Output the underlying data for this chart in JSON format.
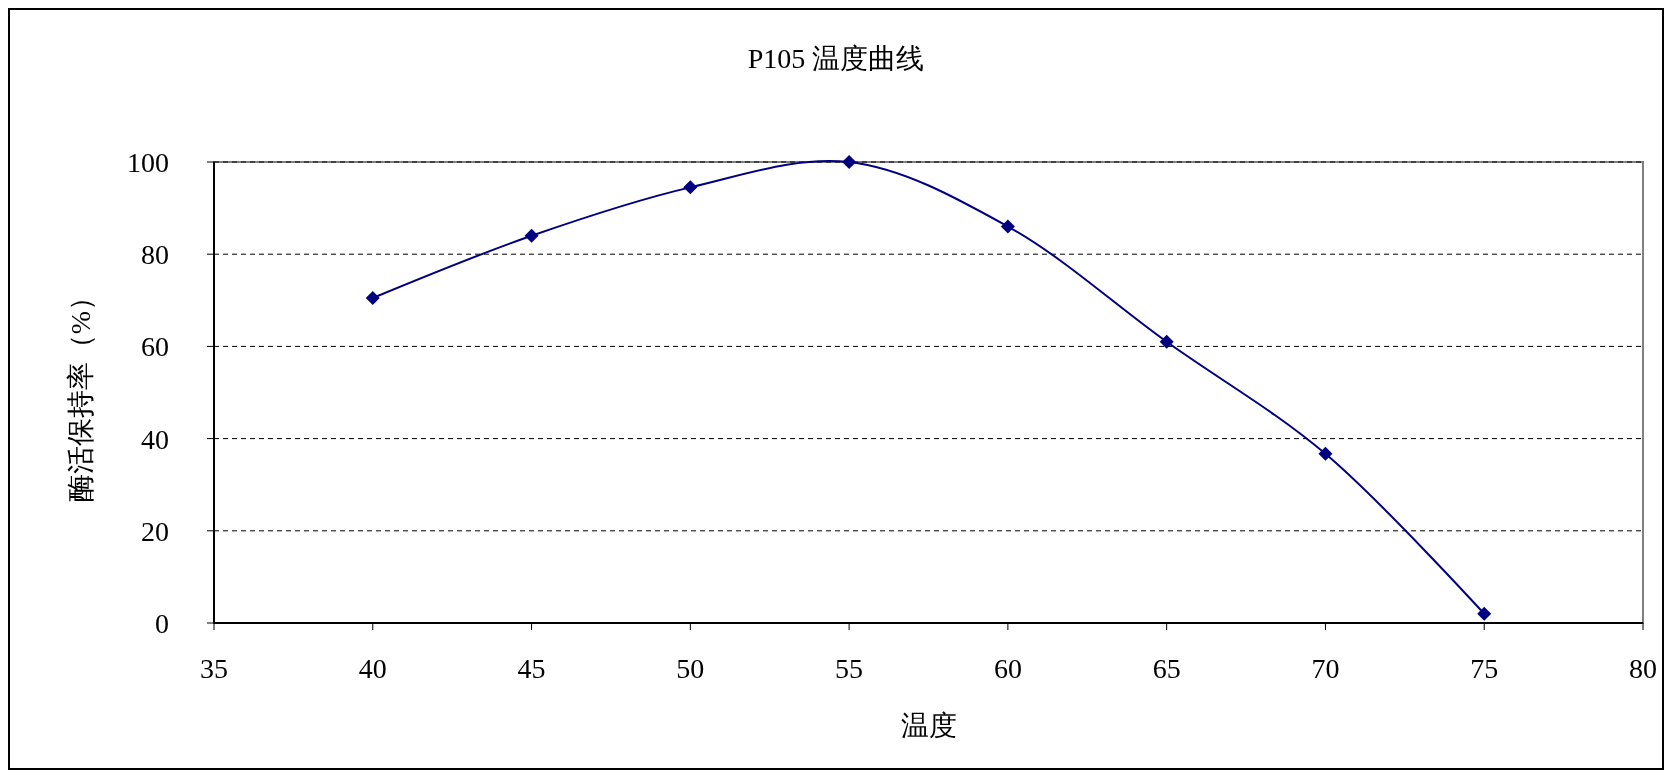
{
  "chart_data": {
    "type": "line",
    "title": "P105 温度曲线",
    "xlabel": "温度",
    "ylabel": "酶活保持率（%）",
    "x": [
      40,
      45,
      50,
      55,
      60,
      65,
      70,
      75
    ],
    "series": [
      {
        "color": "#000080",
        "values": [
          70.5,
          84,
          94.5,
          100,
          86,
          61,
          36.7,
          2
        ]
      }
    ],
    "xlim": [
      35,
      80
    ],
    "xticks": [
      35,
      40,
      45,
      50,
      55,
      60,
      65,
      70,
      75,
      80
    ],
    "ylim": [
      0,
      100
    ],
    "yticks": [
      0,
      20,
      40,
      60,
      80,
      100
    ],
    "grid": "y",
    "marker": "diamond"
  }
}
